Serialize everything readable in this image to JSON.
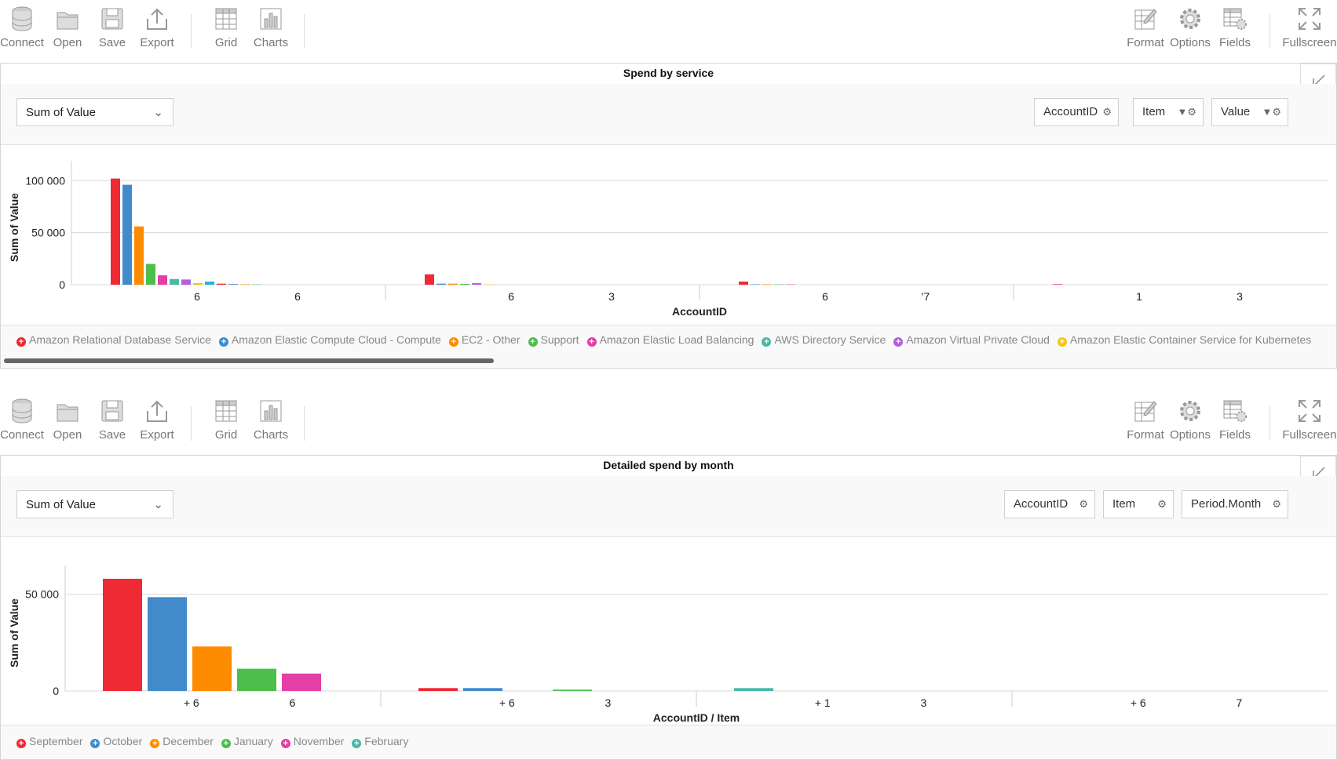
{
  "toolbar": {
    "left": [
      {
        "label": "Connect",
        "icon": "database-icon"
      },
      {
        "label": "Open",
        "icon": "folder-icon"
      },
      {
        "label": "Save",
        "icon": "save-icon"
      },
      {
        "label": "Export",
        "icon": "export-icon"
      },
      {
        "label": "Grid",
        "icon": "grid-icon"
      },
      {
        "label": "Charts",
        "icon": "charts-icon"
      }
    ],
    "right": [
      {
        "label": "Format",
        "icon": "format-icon"
      },
      {
        "label": "Options",
        "icon": "options-icon"
      },
      {
        "label": "Fields",
        "icon": "fields-icon"
      },
      {
        "label": "Fullscreen",
        "icon": "fullscreen-icon"
      }
    ]
  },
  "panel1": {
    "title": "Spend by service",
    "measure": "Sum of Value",
    "pills": [
      "AccountID",
      "Item",
      "Value"
    ]
  },
  "panel2": {
    "title": "Detailed spend by month",
    "measure": "Sum of Value",
    "pills": [
      "AccountID",
      "Item",
      "Period.Month"
    ]
  },
  "colors": {
    "red": "#ee2a35",
    "blue": "#428bca",
    "orange": "#ff8c00",
    "green": "#4cbe4c",
    "pink": "#e33fa4",
    "teal": "#4ab8a6",
    "purple": "#b45fe0",
    "yellow": "#f2c80f",
    "cyan": "#19b9d3"
  },
  "chart_data": [
    {
      "type": "bar",
      "ylabel": "Sum of Value",
      "xlabel": "AccountID",
      "yticks": [
        "100 000",
        "50 000",
        "0"
      ],
      "ylim": [
        0,
        110000
      ],
      "x_tick_labels": [
        "6",
        "6",
        "6",
        "3",
        "6",
        "'7",
        "1",
        "3"
      ],
      "legend": [
        {
          "name": "Amazon Relational Database Service",
          "color": "#ee2a35"
        },
        {
          "name": "Amazon Elastic Compute Cloud - Compute",
          "color": "#428bca"
        },
        {
          "name": "EC2 - Other",
          "color": "#ff8c00"
        },
        {
          "name": "Support",
          "color": "#4cbe4c"
        },
        {
          "name": "Amazon Elastic Load Balancing",
          "color": "#e33fa4"
        },
        {
          "name": "AWS Directory Service",
          "color": "#4ab8a6"
        },
        {
          "name": "Amazon Virtual Private Cloud",
          "color": "#b45fe0"
        },
        {
          "name": "Amazon Elastic Container Service for Kubernetes",
          "color": "#f2c80f"
        }
      ],
      "groups": [
        {
          "values": [
            {
              "color": "#ee2a35",
              "value": 102000
            },
            {
              "color": "#428bca",
              "value": 96000
            },
            {
              "color": "#ff8c00",
              "value": 56000
            },
            {
              "color": "#4cbe4c",
              "value": 20000
            },
            {
              "color": "#e33fa4",
              "value": 9000
            },
            {
              "color": "#4ab8a6",
              "value": 5500
            },
            {
              "color": "#b45fe0",
              "value": 5000
            },
            {
              "color": "#f2c80f",
              "value": 1500
            },
            {
              "color": "#19b9d3",
              "value": 3000
            },
            {
              "color": "#ee2a35",
              "value": 1000
            },
            {
              "color": "#428bca",
              "value": 600
            },
            {
              "color": "#ff8c00",
              "value": 400
            },
            {
              "color": "#4cbe4c",
              "value": 300
            }
          ]
        },
        {
          "values": [
            {
              "color": "#ee2a35",
              "value": 10000
            },
            {
              "color": "#428bca",
              "value": 1000
            },
            {
              "color": "#ff8c00",
              "value": 1000
            },
            {
              "color": "#4cbe4c",
              "value": 800
            },
            {
              "color": "#b45fe0",
              "value": 1500
            },
            {
              "color": "#f2c80f",
              "value": 300
            }
          ]
        },
        {
          "values": [
            {
              "color": "#ee2a35",
              "value": 3000
            },
            {
              "color": "#428bca",
              "value": 400
            },
            {
              "color": "#ff8c00",
              "value": 400
            },
            {
              "color": "#4cbe4c",
              "value": 300
            },
            {
              "color": "#e33fa4",
              "value": 300
            }
          ]
        },
        {
          "values": [
            {
              "color": "#ee2a35",
              "value": 500
            }
          ]
        }
      ]
    },
    {
      "type": "bar",
      "ylabel": "Sum of Value",
      "xlabel": "AccountID / Item",
      "yticks": [
        "50 000",
        "0"
      ],
      "ylim": [
        0,
        60000
      ],
      "x_tick_labels": [
        "+ 6",
        "6",
        "+ 6",
        "3",
        "+ 1",
        "3",
        "+ 6",
        "7"
      ],
      "legend": [
        {
          "name": "September",
          "color": "#ee2a35"
        },
        {
          "name": "October",
          "color": "#428bca"
        },
        {
          "name": "December",
          "color": "#ff8c00"
        },
        {
          "name": "January",
          "color": "#4cbe4c"
        },
        {
          "name": "November",
          "color": "#e33fa4"
        },
        {
          "name": "February",
          "color": "#4ab8a6"
        }
      ],
      "groups": [
        {
          "values": [
            {
              "color": "#ee2a35",
              "value": 58000
            },
            {
              "color": "#428bca",
              "value": 48500
            },
            {
              "color": "#ff8c00",
              "value": 23000
            },
            {
              "color": "#4cbe4c",
              "value": 11500
            },
            {
              "color": "#e33fa4",
              "value": 9000
            }
          ]
        },
        {
          "values": [
            {
              "color": "#ee2a35",
              "value": 1500
            },
            {
              "color": "#428bca",
              "value": 1500
            },
            {
              "color": "#ff8c00",
              "value": 0
            },
            {
              "color": "#4cbe4c",
              "value": 700
            }
          ]
        },
        {
          "values": [
            {
              "color": "#4ab8a6",
              "value": 1500
            }
          ]
        },
        {
          "values": []
        }
      ]
    }
  ]
}
